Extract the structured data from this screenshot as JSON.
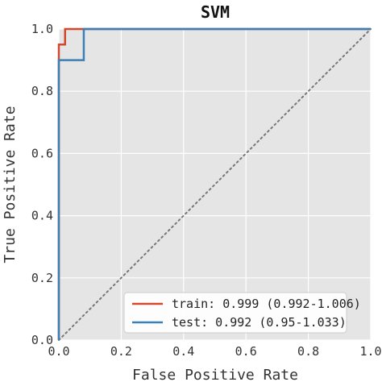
{
  "chart_data": {
    "type": "line",
    "title": "SVM",
    "xlabel": "False Positive Rate",
    "ylabel": "True Positive Rate",
    "xlim": [
      0.0,
      1.0
    ],
    "ylim": [
      0.0,
      1.0
    ],
    "xticks": [
      "0.0",
      "0.2",
      "0.4",
      "0.6",
      "0.8",
      "1.0"
    ],
    "yticks": [
      "0.0",
      "0.2",
      "0.4",
      "0.6",
      "0.8",
      "1.0"
    ],
    "grid": true,
    "legend_position": "bottom-right",
    "series": [
      {
        "name": "train: 0.999 (0.992-1.006)",
        "color": "#d1492e",
        "x": [
          0.0,
          0.0,
          0.0,
          0.0,
          0.0,
          0.01,
          0.01,
          0.02,
          0.02,
          0.08,
          1.0
        ],
        "y": [
          0.0,
          0.9,
          0.91,
          0.95,
          0.95,
          0.95,
          0.95,
          0.95,
          1.0,
          1.0,
          1.0
        ]
      },
      {
        "name": "test: 0.992 (0.95-1.033)",
        "color": "#3a7fb5",
        "x": [
          0.0,
          0.0,
          0.08,
          0.08,
          1.0
        ],
        "y": [
          0.0,
          0.9,
          0.9,
          1.0,
          1.0
        ]
      }
    ],
    "reference_line": {
      "x": [
        0.0,
        1.0
      ],
      "y": [
        0.0,
        1.0
      ],
      "color": "#777777",
      "style": "dotted"
    }
  }
}
